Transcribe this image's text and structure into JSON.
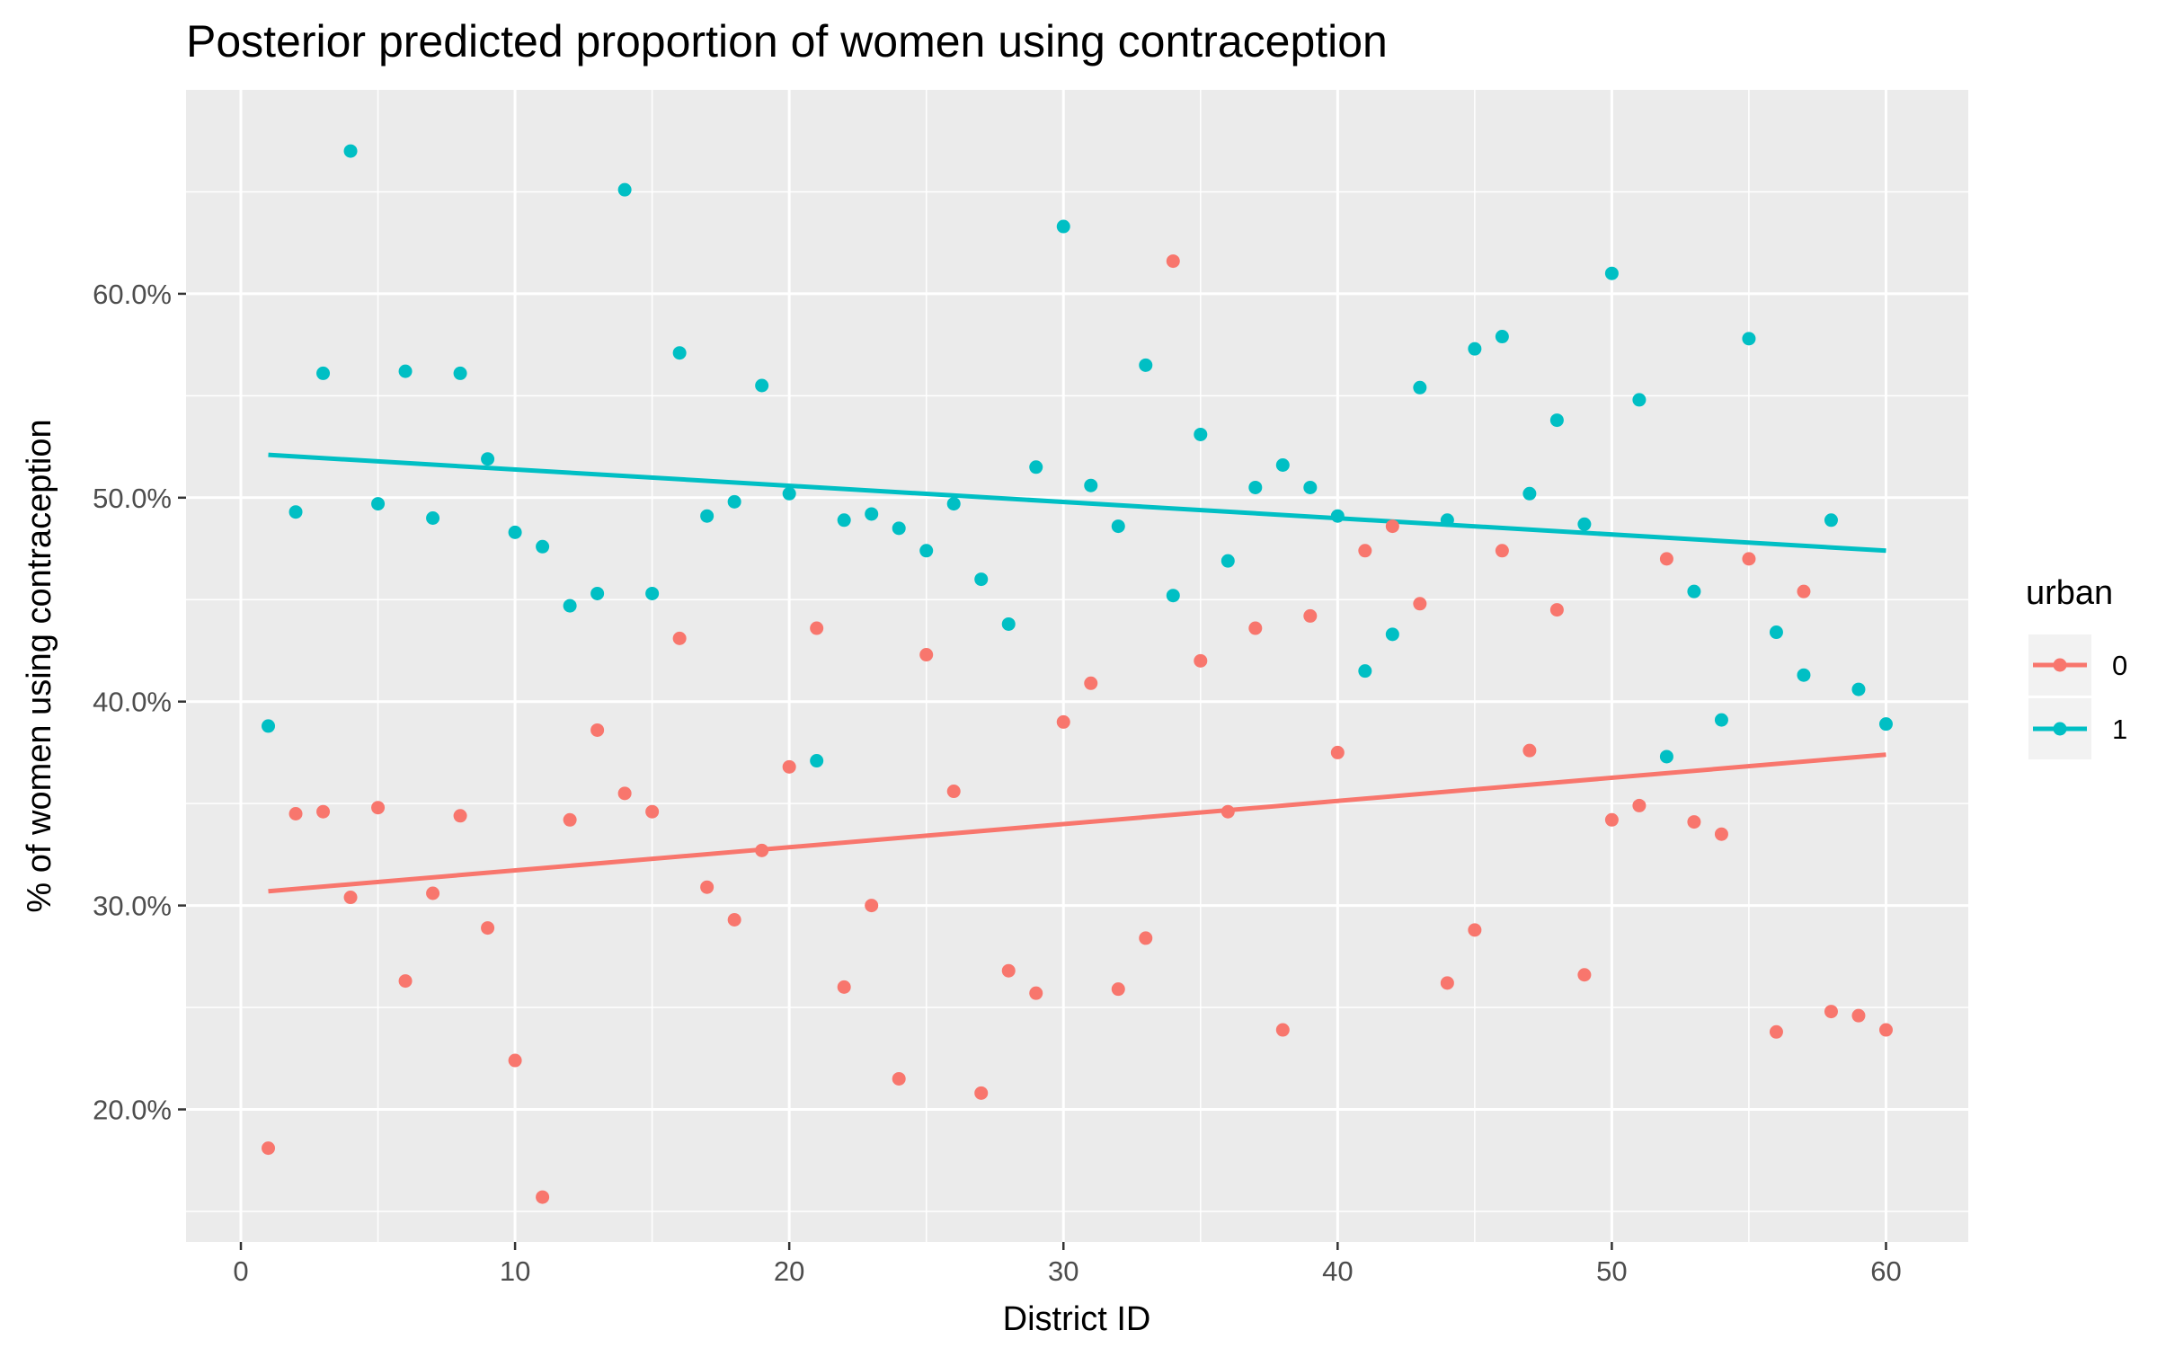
{
  "chart_data": {
    "type": "scatter",
    "title": "Posterior predicted proportion of women using contraception",
    "xlabel": "District ID",
    "ylabel": "% of women using contraception",
    "xlim": [
      -2,
      63
    ],
    "ylim": [
      0.135,
      0.7
    ],
    "x_ticks": [
      0,
      10,
      20,
      30,
      40,
      50,
      60
    ],
    "x_tick_labels": [
      "0",
      "10",
      "20",
      "30",
      "40",
      "50",
      "60"
    ],
    "y_ticks": [
      0.2,
      0.3,
      0.4,
      0.5,
      0.6
    ],
    "y_tick_labels": [
      "20.0%",
      "30.0%",
      "40.0%",
      "50.0%",
      "60.0%"
    ],
    "grid": true,
    "legend": {
      "title": "urban",
      "position": "right",
      "entries": [
        {
          "label": "0",
          "color": "#F8766D"
        },
        {
          "label": "1",
          "color": "#00BFC4"
        }
      ]
    },
    "series": [
      {
        "name": "0",
        "color": "#F8766D",
        "points": [
          [
            1,
            0.181
          ],
          [
            2,
            0.345
          ],
          [
            3,
            0.346
          ],
          [
            4,
            0.304
          ],
          [
            5,
            0.348
          ],
          [
            6,
            0.263
          ],
          [
            7,
            0.306
          ],
          [
            8,
            0.344
          ],
          [
            9,
            0.289
          ],
          [
            10,
            0.224
          ],
          [
            11,
            0.157
          ],
          [
            12,
            0.342
          ],
          [
            13,
            0.386
          ],
          [
            14,
            0.355
          ],
          [
            15,
            0.346
          ],
          [
            16,
            0.431
          ],
          [
            17,
            0.309
          ],
          [
            18,
            0.293
          ],
          [
            19,
            0.327
          ],
          [
            20,
            0.368
          ],
          [
            21,
            0.436
          ],
          [
            22,
            0.26
          ],
          [
            23,
            0.3
          ],
          [
            24,
            0.215
          ],
          [
            25,
            0.423
          ],
          [
            26,
            0.356
          ],
          [
            27,
            0.208
          ],
          [
            28,
            0.268
          ],
          [
            29,
            0.257
          ],
          [
            30,
            0.39
          ],
          [
            31,
            0.409
          ],
          [
            32,
            0.259
          ],
          [
            33,
            0.284
          ],
          [
            34,
            0.616
          ],
          [
            35,
            0.42
          ],
          [
            36,
            0.346
          ],
          [
            37,
            0.436
          ],
          [
            38,
            0.239
          ],
          [
            39,
            0.442
          ],
          [
            40,
            0.375
          ],
          [
            41,
            0.474
          ],
          [
            42,
            0.486
          ],
          [
            43,
            0.448
          ],
          [
            44,
            0.262
          ],
          [
            45,
            0.288
          ],
          [
            46,
            0.474
          ],
          [
            47,
            0.376
          ],
          [
            48,
            0.445
          ],
          [
            49,
            0.266
          ],
          [
            50,
            0.342
          ],
          [
            51,
            0.349
          ],
          [
            52,
            0.47
          ],
          [
            53,
            0.341
          ],
          [
            54,
            0.335
          ],
          [
            55,
            0.47
          ],
          [
            56,
            0.238
          ],
          [
            57,
            0.454
          ],
          [
            58,
            0.248
          ],
          [
            59,
            0.246
          ],
          [
            60,
            0.239
          ]
        ],
        "trend": [
          [
            1,
            0.307
          ],
          [
            60,
            0.374
          ]
        ]
      },
      {
        "name": "1",
        "color": "#00BFC4",
        "points": [
          [
            1,
            0.388
          ],
          [
            2,
            0.493
          ],
          [
            3,
            0.561
          ],
          [
            4,
            0.67
          ],
          [
            5,
            0.497
          ],
          [
            6,
            0.562
          ],
          [
            7,
            0.49
          ],
          [
            8,
            0.561
          ],
          [
            9,
            0.519
          ],
          [
            10,
            0.483
          ],
          [
            11,
            0.476
          ],
          [
            12,
            0.447
          ],
          [
            13,
            0.453
          ],
          [
            14,
            0.651
          ],
          [
            15,
            0.453
          ],
          [
            16,
            0.571
          ],
          [
            17,
            0.491
          ],
          [
            18,
            0.498
          ],
          [
            19,
            0.555
          ],
          [
            20,
            0.502
          ],
          [
            21,
            0.371
          ],
          [
            22,
            0.489
          ],
          [
            23,
            0.492
          ],
          [
            24,
            0.485
          ],
          [
            25,
            0.474
          ],
          [
            26,
            0.497
          ],
          [
            27,
            0.46
          ],
          [
            28,
            0.438
          ],
          [
            29,
            0.515
          ],
          [
            30,
            0.633
          ],
          [
            31,
            0.506
          ],
          [
            32,
            0.486
          ],
          [
            33,
            0.565
          ],
          [
            34,
            0.452
          ],
          [
            35,
            0.531
          ],
          [
            36,
            0.469
          ],
          [
            37,
            0.505
          ],
          [
            38,
            0.516
          ],
          [
            39,
            0.505
          ],
          [
            40,
            0.491
          ],
          [
            41,
            0.415
          ],
          [
            42,
            0.433
          ],
          [
            43,
            0.554
          ],
          [
            44,
            0.489
          ],
          [
            45,
            0.573
          ],
          [
            46,
            0.579
          ],
          [
            47,
            0.502
          ],
          [
            48,
            0.538
          ],
          [
            49,
            0.487
          ],
          [
            50,
            0.61
          ],
          [
            51,
            0.548
          ],
          [
            52,
            0.373
          ],
          [
            53,
            0.454
          ],
          [
            54,
            0.391
          ],
          [
            55,
            0.578
          ],
          [
            56,
            0.434
          ],
          [
            57,
            0.413
          ],
          [
            58,
            0.489
          ],
          [
            59,
            0.406
          ],
          [
            60,
            0.389
          ]
        ],
        "trend": [
          [
            1,
            0.521
          ],
          [
            60,
            0.474
          ]
        ]
      }
    ]
  }
}
